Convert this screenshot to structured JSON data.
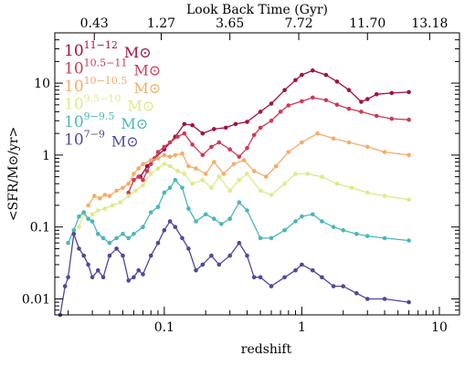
{
  "chart_data": {
    "type": "line",
    "top_axis": {
      "label": "Look Back Time (Gyr)",
      "ticks": [
        {
          "label": "0.43",
          "z": 0.031
        },
        {
          "label": "1.27",
          "z": 0.095
        },
        {
          "label": "3.65",
          "z": 0.3
        },
        {
          "label": "7.72",
          "z": 0.95
        },
        {
          "label": "11.70",
          "z": 3.0
        },
        {
          "label": "13.18",
          "z": 8.5
        }
      ]
    },
    "xlabel": "redshift",
    "ylabel": "<SFR/M⊙/yr>",
    "xscale": "log",
    "yscale": "log",
    "xlim": [
      0.016,
      14
    ],
    "ylim": [
      0.006,
      50
    ],
    "xticks": [
      {
        "value": 0.1,
        "label": "0.1"
      },
      {
        "value": 1,
        "label": "1"
      },
      {
        "value": 10,
        "label": "10"
      }
    ],
    "yticks": [
      {
        "value": 0.01,
        "label": "0.01"
      },
      {
        "value": 0.1,
        "label": "0.1"
      },
      {
        "value": 1,
        "label": "1"
      },
      {
        "value": 10,
        "label": "10"
      }
    ],
    "series": [
      {
        "name": "10^11-12 M⊙",
        "label_base": "10",
        "label_exp": "11−12",
        "label_unit": "M⊙",
        "color": "#a0113f",
        "x": [
          0.067,
          0.075,
          0.085,
          0.1,
          0.12,
          0.14,
          0.16,
          0.19,
          0.23,
          0.28,
          0.33,
          0.4,
          0.5,
          0.6,
          0.75,
          0.9,
          1.0,
          1.2,
          1.5,
          1.8,
          2.2,
          2.7,
          3.0,
          3.5,
          4.5,
          6.0
        ],
        "y": [
          0.5,
          0.7,
          0.9,
          1.2,
          1.8,
          2.7,
          2.6,
          2.0,
          2.3,
          2.4,
          2.7,
          2.9,
          4.0,
          5.2,
          8.0,
          11.0,
          13.0,
          15.0,
          13.0,
          10.5,
          8.0,
          5.5,
          6.0,
          7.0,
          7.3,
          7.5
        ]
      },
      {
        "name": "10^10.5-11 M⊙",
        "label_base": "10",
        "label_exp": "10.5−11",
        "label_unit": "M⊙",
        "color": "#cd3a55",
        "x": [
          0.055,
          0.06,
          0.065,
          0.07,
          0.075,
          0.08,
          0.085,
          0.09,
          0.1,
          0.11,
          0.125,
          0.14,
          0.16,
          0.19,
          0.22,
          0.25,
          0.3,
          0.35,
          0.4,
          0.45,
          0.5,
          0.6,
          0.7,
          0.8,
          1.0,
          1.2,
          1.5,
          1.8,
          2.2,
          2.7,
          3.5,
          4.5,
          6.0
        ],
        "y": [
          0.3,
          0.45,
          0.5,
          0.45,
          0.6,
          0.75,
          0.9,
          1.1,
          1.3,
          1.5,
          1.8,
          2.0,
          1.4,
          1.0,
          1.3,
          1.5,
          1.2,
          0.95,
          1.25,
          1.9,
          2.4,
          3.0,
          4.0,
          4.9,
          5.6,
          6.3,
          5.8,
          5.0,
          4.4,
          4.0,
          3.5,
          3.2,
          3.1
        ]
      },
      {
        "name": "10^10-10.5 M⊙",
        "label_base": "10",
        "label_exp": "10−10.5",
        "label_unit": "M⊙",
        "color": "#f3ad68",
        "x": [
          0.028,
          0.031,
          0.034,
          0.037,
          0.04,
          0.045,
          0.05,
          0.055,
          0.06,
          0.065,
          0.07,
          0.08,
          0.09,
          0.1,
          0.11,
          0.12,
          0.135,
          0.15,
          0.17,
          0.2,
          0.23,
          0.27,
          0.32,
          0.38,
          0.45,
          0.55,
          0.65,
          0.8,
          1.0,
          1.3,
          1.7,
          2.2,
          3.0,
          4.0,
          6.0
        ],
        "y": [
          0.2,
          0.27,
          0.25,
          0.28,
          0.27,
          0.32,
          0.35,
          0.4,
          0.55,
          0.65,
          0.75,
          0.85,
          0.9,
          1.0,
          0.95,
          1.0,
          1.05,
          0.7,
          0.65,
          0.55,
          0.8,
          0.55,
          0.75,
          0.85,
          0.6,
          0.5,
          0.7,
          1.1,
          1.5,
          2.0,
          1.7,
          1.5,
          1.3,
          1.1,
          1.0
        ]
      },
      {
        "name": "10^9.5-10 M⊙",
        "label_base": "10",
        "label_exp": "9.5−10",
        "label_unit": "M⊙",
        "color": "#dfe98a",
        "x": [
          0.024,
          0.026,
          0.028,
          0.03,
          0.033,
          0.037,
          0.042,
          0.048,
          0.055,
          0.062,
          0.07,
          0.08,
          0.09,
          0.1,
          0.11,
          0.125,
          0.14,
          0.16,
          0.19,
          0.22,
          0.25,
          0.3,
          0.35,
          0.4,
          0.5,
          0.6,
          0.75,
          0.9,
          1.1,
          1.4,
          1.8,
          2.3,
          3.0,
          4.0,
          6.0
        ],
        "y": [
          0.1,
          0.15,
          0.13,
          0.15,
          0.17,
          0.18,
          0.2,
          0.22,
          0.27,
          0.32,
          0.38,
          0.55,
          0.65,
          0.75,
          0.7,
          0.6,
          0.55,
          0.4,
          0.45,
          0.35,
          0.5,
          0.32,
          0.45,
          0.55,
          0.32,
          0.28,
          0.4,
          0.55,
          0.55,
          0.5,
          0.4,
          0.35,
          0.3,
          0.27,
          0.24
        ]
      },
      {
        "name": "10^9-9.5 M⊙",
        "label_base": "10",
        "label_exp": "9−9.5",
        "label_unit": "M⊙",
        "color": "#4bb6b7",
        "x": [
          0.02,
          0.022,
          0.024,
          0.026,
          0.028,
          0.03,
          0.033,
          0.036,
          0.04,
          0.045,
          0.05,
          0.055,
          0.06,
          0.07,
          0.08,
          0.09,
          0.1,
          0.11,
          0.12,
          0.135,
          0.15,
          0.17,
          0.2,
          0.23,
          0.26,
          0.3,
          0.35,
          0.4,
          0.5,
          0.6,
          0.75,
          0.9,
          1.0,
          1.2,
          1.4,
          1.7,
          2.0,
          2.5,
          3.0,
          4.0,
          6.0
        ],
        "y": [
          0.06,
          0.09,
          0.14,
          0.16,
          0.13,
          0.12,
          0.08,
          0.07,
          0.06,
          0.07,
          0.08,
          0.07,
          0.08,
          0.1,
          0.16,
          0.19,
          0.3,
          0.35,
          0.45,
          0.35,
          0.18,
          0.12,
          0.15,
          0.13,
          0.11,
          0.13,
          0.22,
          0.17,
          0.07,
          0.07,
          0.09,
          0.12,
          0.14,
          0.15,
          0.12,
          0.1,
          0.09,
          0.08,
          0.075,
          0.07,
          0.065
        ]
      },
      {
        "name": "10^7-9 M⊙",
        "label_base": "10",
        "label_exp": "7−9",
        "label_unit": "M⊙",
        "color": "#4e4898",
        "x": [
          0.0175,
          0.019,
          0.02,
          0.022,
          0.024,
          0.026,
          0.028,
          0.03,
          0.033,
          0.036,
          0.04,
          0.045,
          0.05,
          0.055,
          0.06,
          0.065,
          0.07,
          0.08,
          0.09,
          0.1,
          0.11,
          0.12,
          0.135,
          0.15,
          0.17,
          0.19,
          0.22,
          0.25,
          0.3,
          0.35,
          0.4,
          0.45,
          0.5,
          0.6,
          0.75,
          0.9,
          1.0,
          1.2,
          1.4,
          1.7,
          2.0,
          2.5,
          3.0,
          4.0,
          6.0
        ],
        "y": [
          0.006,
          0.015,
          0.02,
          0.08,
          0.05,
          0.04,
          0.03,
          0.02,
          0.025,
          0.02,
          0.04,
          0.05,
          0.04,
          0.018,
          0.02,
          0.025,
          0.022,
          0.04,
          0.06,
          0.09,
          0.12,
          0.1,
          0.07,
          0.05,
          0.025,
          0.03,
          0.04,
          0.03,
          0.04,
          0.06,
          0.04,
          0.02,
          0.02,
          0.015,
          0.02,
          0.025,
          0.03,
          0.025,
          0.02,
          0.015,
          0.015,
          0.012,
          0.01,
          0.01,
          0.009
        ]
      }
    ],
    "legend_position": "top-left",
    "grid": false
  }
}
